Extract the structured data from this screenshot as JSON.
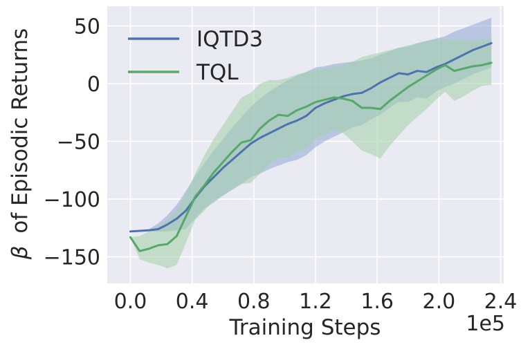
{
  "chart_data": {
    "type": "line",
    "title": "",
    "xlabel": "Training Steps",
    "ylabel_symbol": "β",
    "ylabel_text": "of Episodic Returns",
    "x_exponent_label": "1e5",
    "xlim": [
      -0.15,
      2.42
    ],
    "ylim": [
      -173,
      67
    ],
    "x_ticks": [
      0.0,
      0.4,
      0.8,
      1.2,
      1.6,
      2.0,
      2.4
    ],
    "x_tick_labels": [
      "0.0",
      "0.4",
      "0.8",
      "1.2",
      "1.6",
      "2.0",
      "2.4"
    ],
    "y_ticks": [
      -150,
      -100,
      -50,
      0,
      50
    ],
    "y_tick_labels": [
      "−150",
      "−100",
      "−50",
      "0",
      "50"
    ],
    "grid": true,
    "legend_position": "top-left",
    "series": [
      {
        "name": "IQTD3",
        "color": "#4c72b0",
        "band_color": "#8fa8d6",
        "x": [
          0.0,
          0.06,
          0.12,
          0.18,
          0.24,
          0.3,
          0.36,
          0.42,
          0.48,
          0.54,
          0.6,
          0.66,
          0.72,
          0.78,
          0.84,
          0.9,
          0.96,
          1.02,
          1.08,
          1.14,
          1.2,
          1.26,
          1.32,
          1.38,
          1.44,
          1.5,
          1.56,
          1.62,
          1.68,
          1.74,
          1.8,
          1.86,
          1.92,
          1.98,
          2.04,
          2.1,
          2.16,
          2.22,
          2.28,
          2.34
        ],
        "mean": [
          -128,
          -127.5,
          -127,
          -126,
          -122,
          -117,
          -110,
          -99,
          -89,
          -81,
          -73,
          -66,
          -59,
          -52,
          -47,
          -43,
          -39,
          -35,
          -32,
          -28,
          -21,
          -17,
          -14,
          -11,
          -9,
          -8,
          -4,
          1,
          5,
          9,
          8,
          11,
          10,
          14,
          17,
          21,
          25,
          29,
          32,
          35
        ],
        "upper": [
          -128,
          -127,
          -126,
          -121,
          -114,
          -105,
          -93,
          -80,
          -69,
          -58,
          -48,
          -38,
          -29,
          -20,
          -13,
          -7,
          -2,
          3,
          7,
          10,
          14,
          15,
          17,
          18,
          19,
          20,
          22,
          25,
          28,
          31,
          32,
          35,
          37,
          39,
          41,
          45,
          48,
          51,
          54,
          57
        ],
        "lower": [
          -128,
          -128,
          -128,
          -128,
          -128,
          -127,
          -126,
          -117,
          -108,
          -103,
          -97,
          -92,
          -87,
          -81,
          -78,
          -74,
          -71,
          -68,
          -66,
          -62,
          -55,
          -50,
          -46,
          -42,
          -38,
          -36,
          -31,
          -27,
          -21,
          -16,
          -16,
          -12,
          -13,
          -7,
          -3,
          0,
          4,
          8,
          11,
          14
        ]
      },
      {
        "name": "TQL",
        "color": "#55a868",
        "band_color": "#a3cfa8",
        "x": [
          0.0,
          0.06,
          0.12,
          0.18,
          0.24,
          0.3,
          0.36,
          0.42,
          0.48,
          0.54,
          0.6,
          0.66,
          0.72,
          0.78,
          0.84,
          0.9,
          0.96,
          1.02,
          1.08,
          1.14,
          1.2,
          1.26,
          1.32,
          1.38,
          1.44,
          1.5,
          1.56,
          1.62,
          1.68,
          1.74,
          1.8,
          1.86,
          1.92,
          1.98,
          2.04,
          2.1,
          2.16,
          2.22,
          2.28,
          2.34
        ],
        "mean": [
          -133,
          -145,
          -143,
          -140,
          -139,
          -132,
          -115,
          -98,
          -88,
          -77,
          -68,
          -59,
          -51,
          -49,
          -39,
          -32,
          -27,
          -28,
          -23,
          -20,
          -16,
          -14,
          -12,
          -13,
          -15,
          -21,
          -21,
          -22,
          -15,
          -9,
          -3,
          2,
          7,
          12,
          16,
          11,
          13,
          15,
          16,
          18
        ],
        "upper": [
          -133,
          -132,
          -128,
          -124,
          -118,
          -111,
          -95,
          -78,
          -62,
          -48,
          -36,
          -24,
          -12,
          -8,
          0,
          3,
          3,
          5,
          8,
          10,
          12,
          13,
          14,
          16,
          19,
          23,
          25,
          27,
          29,
          31,
          33,
          35,
          37,
          38,
          39,
          38,
          38,
          37,
          38,
          39
        ],
        "lower": [
          -133,
          -152,
          -155,
          -157,
          -160,
          -157,
          -138,
          -118,
          -110,
          -101,
          -97,
          -91,
          -87,
          -86,
          -78,
          -70,
          -64,
          -64,
          -59,
          -56,
          -48,
          -44,
          -40,
          -43,
          -50,
          -58,
          -61,
          -65,
          -54,
          -45,
          -36,
          -29,
          -22,
          -14,
          -7,
          -15,
          -11,
          -6,
          -2,
          -1
        ]
      }
    ]
  }
}
